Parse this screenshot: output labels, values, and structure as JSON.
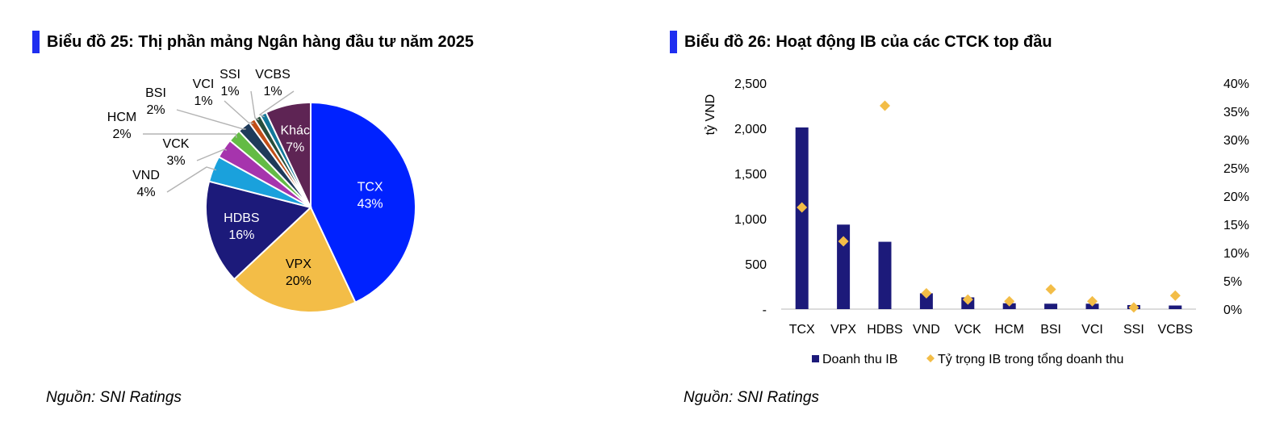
{
  "left": {
    "title": "Biểu đồ 25: Thị phần mảng Ngân hàng đầu tư năm 2025",
    "source": "Nguồn: SNI Ratings"
  },
  "right": {
    "title": "Biểu đồ 26: Hoạt động IB của các CTCK top đầu",
    "source": "Nguồn: SNI Ratings"
  },
  "chart_data": [
    {
      "type": "pie",
      "title": "Biểu đồ 25: Thị phần mảng Ngân hàng đầu tư năm 2025",
      "slices": [
        {
          "label": "TCX",
          "value": 43,
          "text": "43%",
          "color": "#0022ff"
        },
        {
          "label": "VPX",
          "value": 20,
          "text": "20%",
          "color": "#f3bd47"
        },
        {
          "label": "HDBS",
          "value": 16,
          "text": "16%",
          "color": "#1c1a7a"
        },
        {
          "label": "VND",
          "value": 4,
          "text": "4%",
          "color": "#1aa1dc"
        },
        {
          "label": "VCK",
          "value": 3,
          "text": "3%",
          "color": "#a634ad"
        },
        {
          "label": "HCM",
          "value": 2,
          "text": "2%",
          "color": "#63bb45"
        },
        {
          "label": "BSI",
          "value": 2,
          "text": "2%",
          "color": "#1e3a5a"
        },
        {
          "label": "VCI",
          "value": 1,
          "text": "1%",
          "color": "#c04e17"
        },
        {
          "label": "SSI",
          "value": 1,
          "text": "1%",
          "color": "#274e3c"
        },
        {
          "label": "VCBS",
          "value": 1,
          "text": "1%",
          "color": "#12789a"
        },
        {
          "label": "Khác",
          "value": 7,
          "text": "7%",
          "color": "#5e2454"
        }
      ]
    },
    {
      "type": "bar",
      "title": "Biểu đồ 26: Hoạt động IB của các CTCK top đầu",
      "categories": [
        "TCX",
        "VPX",
        "HDBS",
        "VND",
        "VCK",
        "HCM",
        "BSI",
        "VCI",
        "SSI",
        "VCBS"
      ],
      "ylabel": "tỷ VND",
      "ylim": [
        0,
        2500
      ],
      "y_ticks": [
        "-",
        "500",
        "1,000",
        "1,500",
        "2,000",
        "2,500"
      ],
      "y2lim": [
        0,
        40
      ],
      "y2_ticks": [
        "0%",
        "5%",
        "10%",
        "15%",
        "20%",
        "25%",
        "30%",
        "35%",
        "40%"
      ],
      "series": [
        {
          "name": "Doanh thu IB",
          "type": "bar",
          "axis": "left",
          "color": "#1c1a7a",
          "values": [
            2010,
            935,
            745,
            175,
            130,
            65,
            60,
            60,
            45,
            40
          ]
        },
        {
          "name": "Tỷ trọng IB trong tổng doanh thu",
          "type": "scatter",
          "axis": "right",
          "color": "#f3bd47",
          "values": [
            18,
            12,
            36,
            2.8,
            1.7,
            1.4,
            3.5,
            1.4,
            0.3,
            2.4
          ]
        }
      ],
      "legend": "bottom"
    }
  ]
}
